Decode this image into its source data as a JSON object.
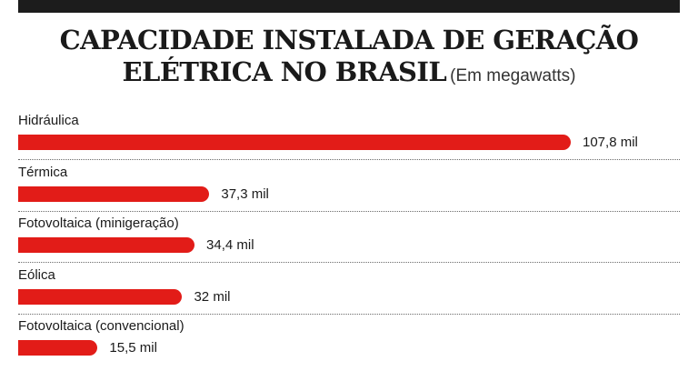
{
  "chart_data": {
    "type": "bar",
    "orientation": "horizontal",
    "title_lines": [
      "CAPACIDADE INSTALADA DE GERAÇÃO",
      "ELÉTRICA NO BRASIL"
    ],
    "unit_note": "(Em megawatts)",
    "categories": [
      "Hidráulica",
      "Térmica",
      "Fotovoltaica (minigeração)",
      "Eólica",
      "Fotovoltaica (convencional)"
    ],
    "values": [
      107.8,
      37.3,
      34.4,
      32,
      15.5
    ],
    "value_labels": [
      "107,8 mil",
      "37,3 mil",
      "34,4 mil",
      "32 mil",
      "15,5 mil"
    ],
    "xlim": [
      0,
      107.8
    ],
    "bar_color": "#e21c18",
    "grid": false,
    "legend": "none"
  }
}
